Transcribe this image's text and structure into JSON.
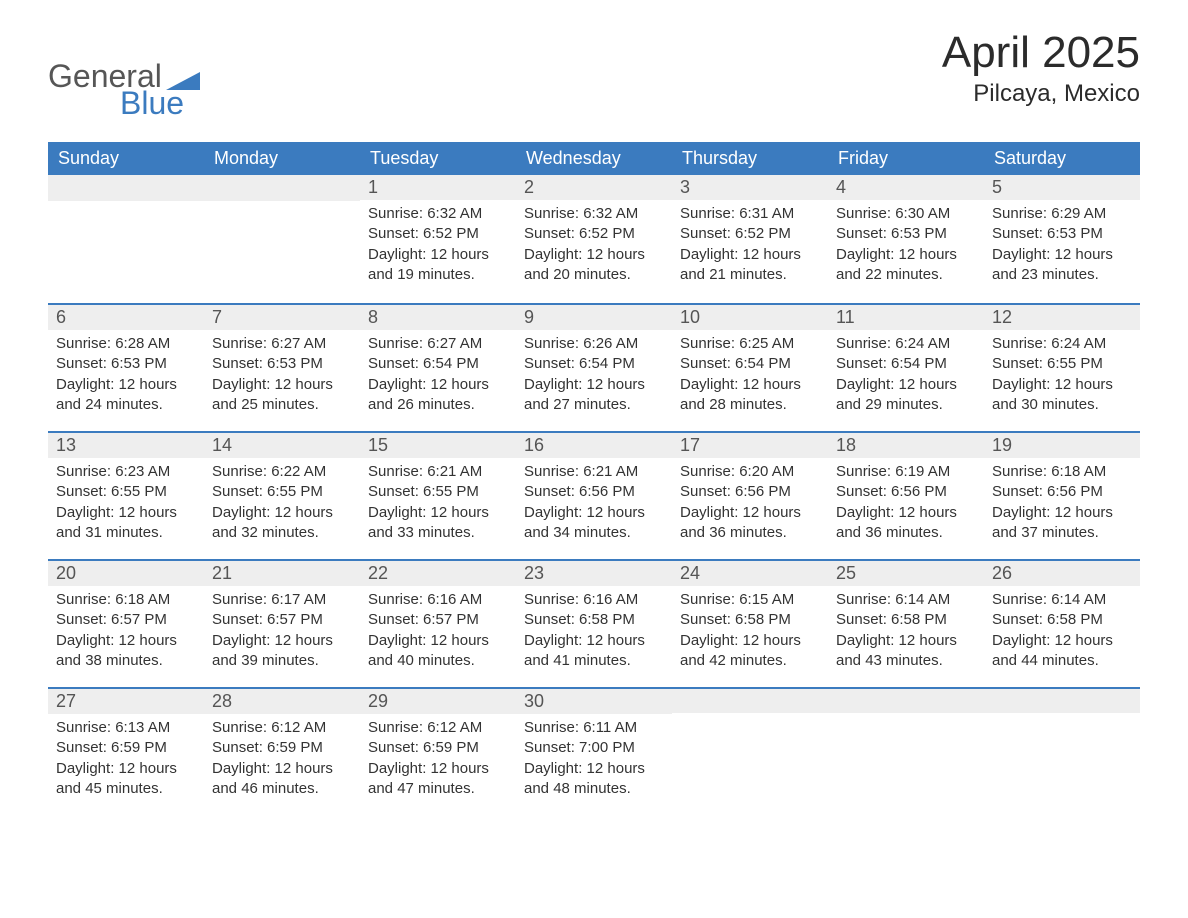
{
  "logo": {
    "text_general": "General",
    "text_blue": "Blue",
    "accent_color": "#3b7bbf",
    "gray_color": "#565656"
  },
  "title": {
    "month": "April 2025",
    "location": "Pilcaya, Mexico"
  },
  "calendar": {
    "header_bg": "#3b7bbf",
    "header_text_color": "#ffffff",
    "daynum_bg": "#eeeeee",
    "row_divider_color": "#3b7bbf",
    "body_text_color": "#333333",
    "day_headers": [
      "Sunday",
      "Monday",
      "Tuesday",
      "Wednesday",
      "Thursday",
      "Friday",
      "Saturday"
    ],
    "weeks": [
      [
        null,
        null,
        {
          "day": "1",
          "sunrise": "6:32 AM",
          "sunset": "6:52 PM",
          "daylight": "12 hours and 19 minutes."
        },
        {
          "day": "2",
          "sunrise": "6:32 AM",
          "sunset": "6:52 PM",
          "daylight": "12 hours and 20 minutes."
        },
        {
          "day": "3",
          "sunrise": "6:31 AM",
          "sunset": "6:52 PM",
          "daylight": "12 hours and 21 minutes."
        },
        {
          "day": "4",
          "sunrise": "6:30 AM",
          "sunset": "6:53 PM",
          "daylight": "12 hours and 22 minutes."
        },
        {
          "day": "5",
          "sunrise": "6:29 AM",
          "sunset": "6:53 PM",
          "daylight": "12 hours and 23 minutes."
        }
      ],
      [
        {
          "day": "6",
          "sunrise": "6:28 AM",
          "sunset": "6:53 PM",
          "daylight": "12 hours and 24 minutes."
        },
        {
          "day": "7",
          "sunrise": "6:27 AM",
          "sunset": "6:53 PM",
          "daylight": "12 hours and 25 minutes."
        },
        {
          "day": "8",
          "sunrise": "6:27 AM",
          "sunset": "6:54 PM",
          "daylight": "12 hours and 26 minutes."
        },
        {
          "day": "9",
          "sunrise": "6:26 AM",
          "sunset": "6:54 PM",
          "daylight": "12 hours and 27 minutes."
        },
        {
          "day": "10",
          "sunrise": "6:25 AM",
          "sunset": "6:54 PM",
          "daylight": "12 hours and 28 minutes."
        },
        {
          "day": "11",
          "sunrise": "6:24 AM",
          "sunset": "6:54 PM",
          "daylight": "12 hours and 29 minutes."
        },
        {
          "day": "12",
          "sunrise": "6:24 AM",
          "sunset": "6:55 PM",
          "daylight": "12 hours and 30 minutes."
        }
      ],
      [
        {
          "day": "13",
          "sunrise": "6:23 AM",
          "sunset": "6:55 PM",
          "daylight": "12 hours and 31 minutes."
        },
        {
          "day": "14",
          "sunrise": "6:22 AM",
          "sunset": "6:55 PM",
          "daylight": "12 hours and 32 minutes."
        },
        {
          "day": "15",
          "sunrise": "6:21 AM",
          "sunset": "6:55 PM",
          "daylight": "12 hours and 33 minutes."
        },
        {
          "day": "16",
          "sunrise": "6:21 AM",
          "sunset": "6:56 PM",
          "daylight": "12 hours and 34 minutes."
        },
        {
          "day": "17",
          "sunrise": "6:20 AM",
          "sunset": "6:56 PM",
          "daylight": "12 hours and 36 minutes."
        },
        {
          "day": "18",
          "sunrise": "6:19 AM",
          "sunset": "6:56 PM",
          "daylight": "12 hours and 36 minutes."
        },
        {
          "day": "19",
          "sunrise": "6:18 AM",
          "sunset": "6:56 PM",
          "daylight": "12 hours and 37 minutes."
        }
      ],
      [
        {
          "day": "20",
          "sunrise": "6:18 AM",
          "sunset": "6:57 PM",
          "daylight": "12 hours and 38 minutes."
        },
        {
          "day": "21",
          "sunrise": "6:17 AM",
          "sunset": "6:57 PM",
          "daylight": "12 hours and 39 minutes."
        },
        {
          "day": "22",
          "sunrise": "6:16 AM",
          "sunset": "6:57 PM",
          "daylight": "12 hours and 40 minutes."
        },
        {
          "day": "23",
          "sunrise": "6:16 AM",
          "sunset": "6:58 PM",
          "daylight": "12 hours and 41 minutes."
        },
        {
          "day": "24",
          "sunrise": "6:15 AM",
          "sunset": "6:58 PM",
          "daylight": "12 hours and 42 minutes."
        },
        {
          "day": "25",
          "sunrise": "6:14 AM",
          "sunset": "6:58 PM",
          "daylight": "12 hours and 43 minutes."
        },
        {
          "day": "26",
          "sunrise": "6:14 AM",
          "sunset": "6:58 PM",
          "daylight": "12 hours and 44 minutes."
        }
      ],
      [
        {
          "day": "27",
          "sunrise": "6:13 AM",
          "sunset": "6:59 PM",
          "daylight": "12 hours and 45 minutes."
        },
        {
          "day": "28",
          "sunrise": "6:12 AM",
          "sunset": "6:59 PM",
          "daylight": "12 hours and 46 minutes."
        },
        {
          "day": "29",
          "sunrise": "6:12 AM",
          "sunset": "6:59 PM",
          "daylight": "12 hours and 47 minutes."
        },
        {
          "day": "30",
          "sunrise": "6:11 AM",
          "sunset": "7:00 PM",
          "daylight": "12 hours and 48 minutes."
        },
        null,
        null,
        null
      ]
    ],
    "labels": {
      "sunrise_prefix": "Sunrise: ",
      "sunset_prefix": "Sunset: ",
      "daylight_prefix": "Daylight: "
    }
  }
}
